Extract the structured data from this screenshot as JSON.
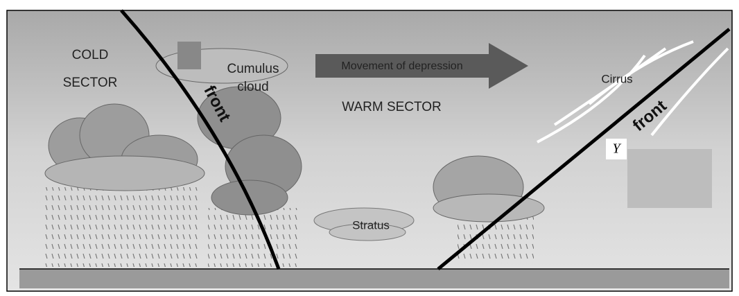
{
  "diagram": {
    "cold_sector": [
      "COLD",
      "SECTOR"
    ],
    "cumulus": [
      "Cumulus",
      "cloud"
    ],
    "cold_front": "front",
    "movement": "Movement of depression",
    "warm_sector": "WARM SECTOR",
    "cirrus": "Cirrus",
    "warm_front": "front",
    "y_label": "Y",
    "stratus": "Stratus"
  }
}
